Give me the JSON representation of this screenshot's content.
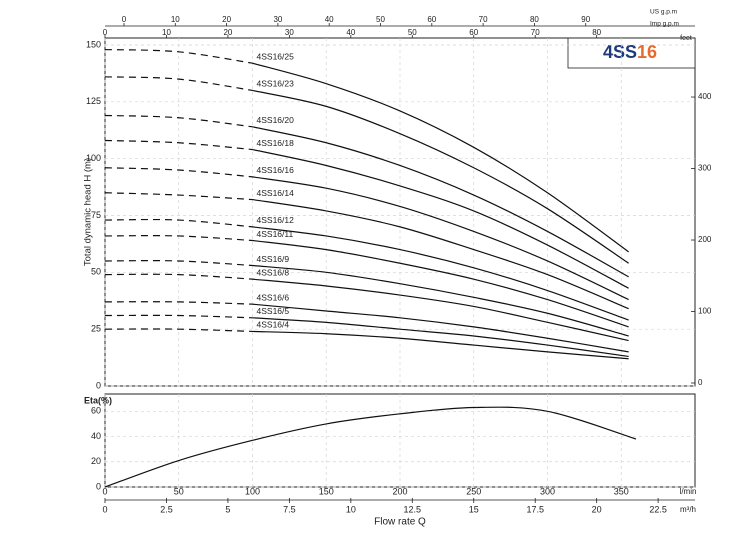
{
  "chart_data": [
    {
      "type": "line",
      "title_parts": [
        "4SS",
        "16"
      ],
      "title_colors": [
        "#1f3a7a",
        "#e8692c"
      ],
      "ylabel": "Total dynamic head H (m)",
      "x": [
        0,
        50,
        100,
        150,
        200,
        250,
        300,
        355
      ],
      "xlim": [
        0,
        400
      ],
      "ylim": [
        0,
        150
      ],
      "yticks": [
        0,
        25,
        50,
        75,
        100,
        125,
        150
      ],
      "y2label": "feet",
      "y2lim": [
        0,
        470
      ],
      "y2ticks": [
        0,
        100,
        200,
        300,
        400
      ],
      "top_axes": [
        {
          "label": "US g.p.m",
          "xlim": [
            -3.7,
            111.3
          ],
          "ticks": [
            0,
            10,
            20,
            30,
            40,
            50,
            60,
            70,
            80,
            90
          ]
        },
        {
          "label": "Imp g.p.m",
          "xlim": [
            0,
            96
          ],
          "ticks": [
            0,
            10,
            20,
            30,
            40,
            50,
            60,
            70,
            80
          ]
        }
      ],
      "color": "#111",
      "series": [
        {
          "name": "4SS16/25",
          "values_dashed": [
            148,
            147,
            142,
            null,
            null,
            null,
            null,
            null
          ],
          "values": [
            null,
            null,
            142,
            133,
            121,
            105,
            85,
            59
          ]
        },
        {
          "name": "4SS16/23",
          "values_dashed": [
            136,
            135,
            130,
            null,
            null,
            null,
            null,
            null
          ],
          "values": [
            null,
            null,
            130,
            123,
            111,
            96,
            78,
            54
          ]
        },
        {
          "name": "4SS16/20",
          "values_dashed": [
            119,
            118,
            114,
            null,
            null,
            null,
            null,
            null
          ],
          "values": [
            null,
            null,
            114,
            107,
            97,
            84,
            68,
            48
          ]
        },
        {
          "name": "4SS16/18",
          "values_dashed": [
            108,
            107,
            104,
            null,
            null,
            null,
            null,
            null
          ],
          "values": [
            null,
            null,
            104,
            97,
            88,
            77,
            62,
            43
          ]
        },
        {
          "name": "4SS16/16",
          "values_dashed": [
            96,
            95,
            92,
            null,
            null,
            null,
            null,
            null
          ],
          "values": [
            null,
            null,
            92,
            87,
            79,
            68,
            55,
            38
          ]
        },
        {
          "name": "4SS16/14",
          "values_dashed": [
            85,
            84,
            82,
            null,
            null,
            null,
            null,
            null
          ],
          "values": [
            null,
            null,
            82,
            77,
            70,
            60,
            49,
            34
          ]
        },
        {
          "name": "4SS16/12",
          "values_dashed": [
            73,
            73,
            70,
            null,
            null,
            null,
            null,
            null
          ],
          "values": [
            null,
            null,
            70,
            66,
            60,
            52,
            42,
            29
          ]
        },
        {
          "name": "4SS16/11",
          "values_dashed": [
            66,
            66,
            64,
            null,
            null,
            null,
            null,
            null
          ],
          "values": [
            null,
            null,
            64,
            60,
            54,
            47,
            38,
            26
          ]
        },
        {
          "name": "4SS16/9",
          "values_dashed": [
            55,
            55,
            53,
            null,
            null,
            null,
            null,
            null
          ],
          "values": [
            null,
            null,
            53,
            50,
            45,
            39,
            32,
            22
          ]
        },
        {
          "name": "4SS16/8",
          "values_dashed": [
            49,
            49,
            47,
            null,
            null,
            null,
            null,
            null
          ],
          "values": [
            null,
            null,
            47,
            44,
            40,
            35,
            28,
            20
          ]
        },
        {
          "name": "4SS16/6",
          "values_dashed": [
            37,
            37,
            36,
            null,
            null,
            null,
            null,
            null
          ],
          "values": [
            null,
            null,
            36,
            33,
            30,
            26,
            21,
            15
          ]
        },
        {
          "name": "4SS16/5",
          "values_dashed": [
            31,
            31,
            30,
            null,
            null,
            null,
            null,
            null
          ],
          "values": [
            null,
            null,
            30,
            28,
            25,
            22,
            18,
            13
          ]
        },
        {
          "name": "4SS16/4",
          "values_dashed": [
            25,
            25,
            24,
            null,
            null,
            null,
            null,
            null
          ],
          "values": [
            null,
            null,
            24,
            23,
            21,
            18,
            15,
            12
          ]
        }
      ]
    },
    {
      "type": "line",
      "ylabel": "Eta(%)",
      "x": [
        0,
        50,
        100,
        150,
        200,
        250,
        300,
        360
      ],
      "xlim": [
        0,
        400
      ],
      "values": [
        0,
        21,
        37,
        50,
        58,
        63,
        60,
        38
      ],
      "color": "#111",
      "ylim": [
        0,
        70
      ],
      "yticks": [
        0,
        20,
        40,
        60
      ],
      "xlabel": "Flow rate  Q",
      "bottom_axes": [
        {
          "label": "l/min",
          "xlim": [
            0,
            400
          ],
          "ticks": [
            0,
            50,
            100,
            150,
            200,
            250,
            300,
            350
          ]
        },
        {
          "label": "m³/h",
          "xlim": [
            0,
            24
          ],
          "ticks": [
            0,
            2.5,
            5,
            7.5,
            10,
            12.5,
            15,
            17.5,
            20,
            22.5
          ]
        }
      ]
    }
  ]
}
